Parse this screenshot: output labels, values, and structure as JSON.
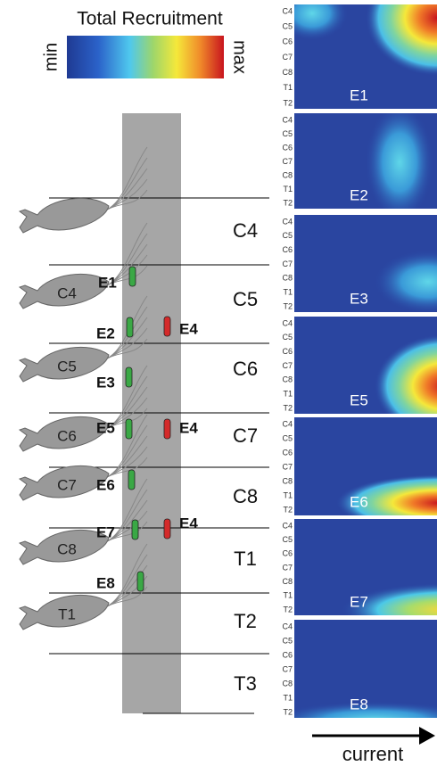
{
  "colorbar": {
    "title": "Total Recruitment",
    "min": "min",
    "max": "max"
  },
  "segments": [
    "C4",
    "C5",
    "C6",
    "C7",
    "C8",
    "T1",
    "T2",
    "T3"
  ],
  "drg_labels": [
    "C4",
    "C5",
    "C6",
    "C7",
    "C8",
    "T1"
  ],
  "electrodes": [
    "E1",
    "E2",
    "E3",
    "E5",
    "E6",
    "E7",
    "E8",
    "E4",
    "E4",
    "E4"
  ],
  "heatmaps": [
    "E1",
    "E2",
    "E3",
    "E5",
    "E6",
    "E7",
    "E8"
  ],
  "heatmap_rows": [
    "C4",
    "C5",
    "C6",
    "C7",
    "C8",
    "T1",
    "T2"
  ],
  "x_axis": "current"
}
